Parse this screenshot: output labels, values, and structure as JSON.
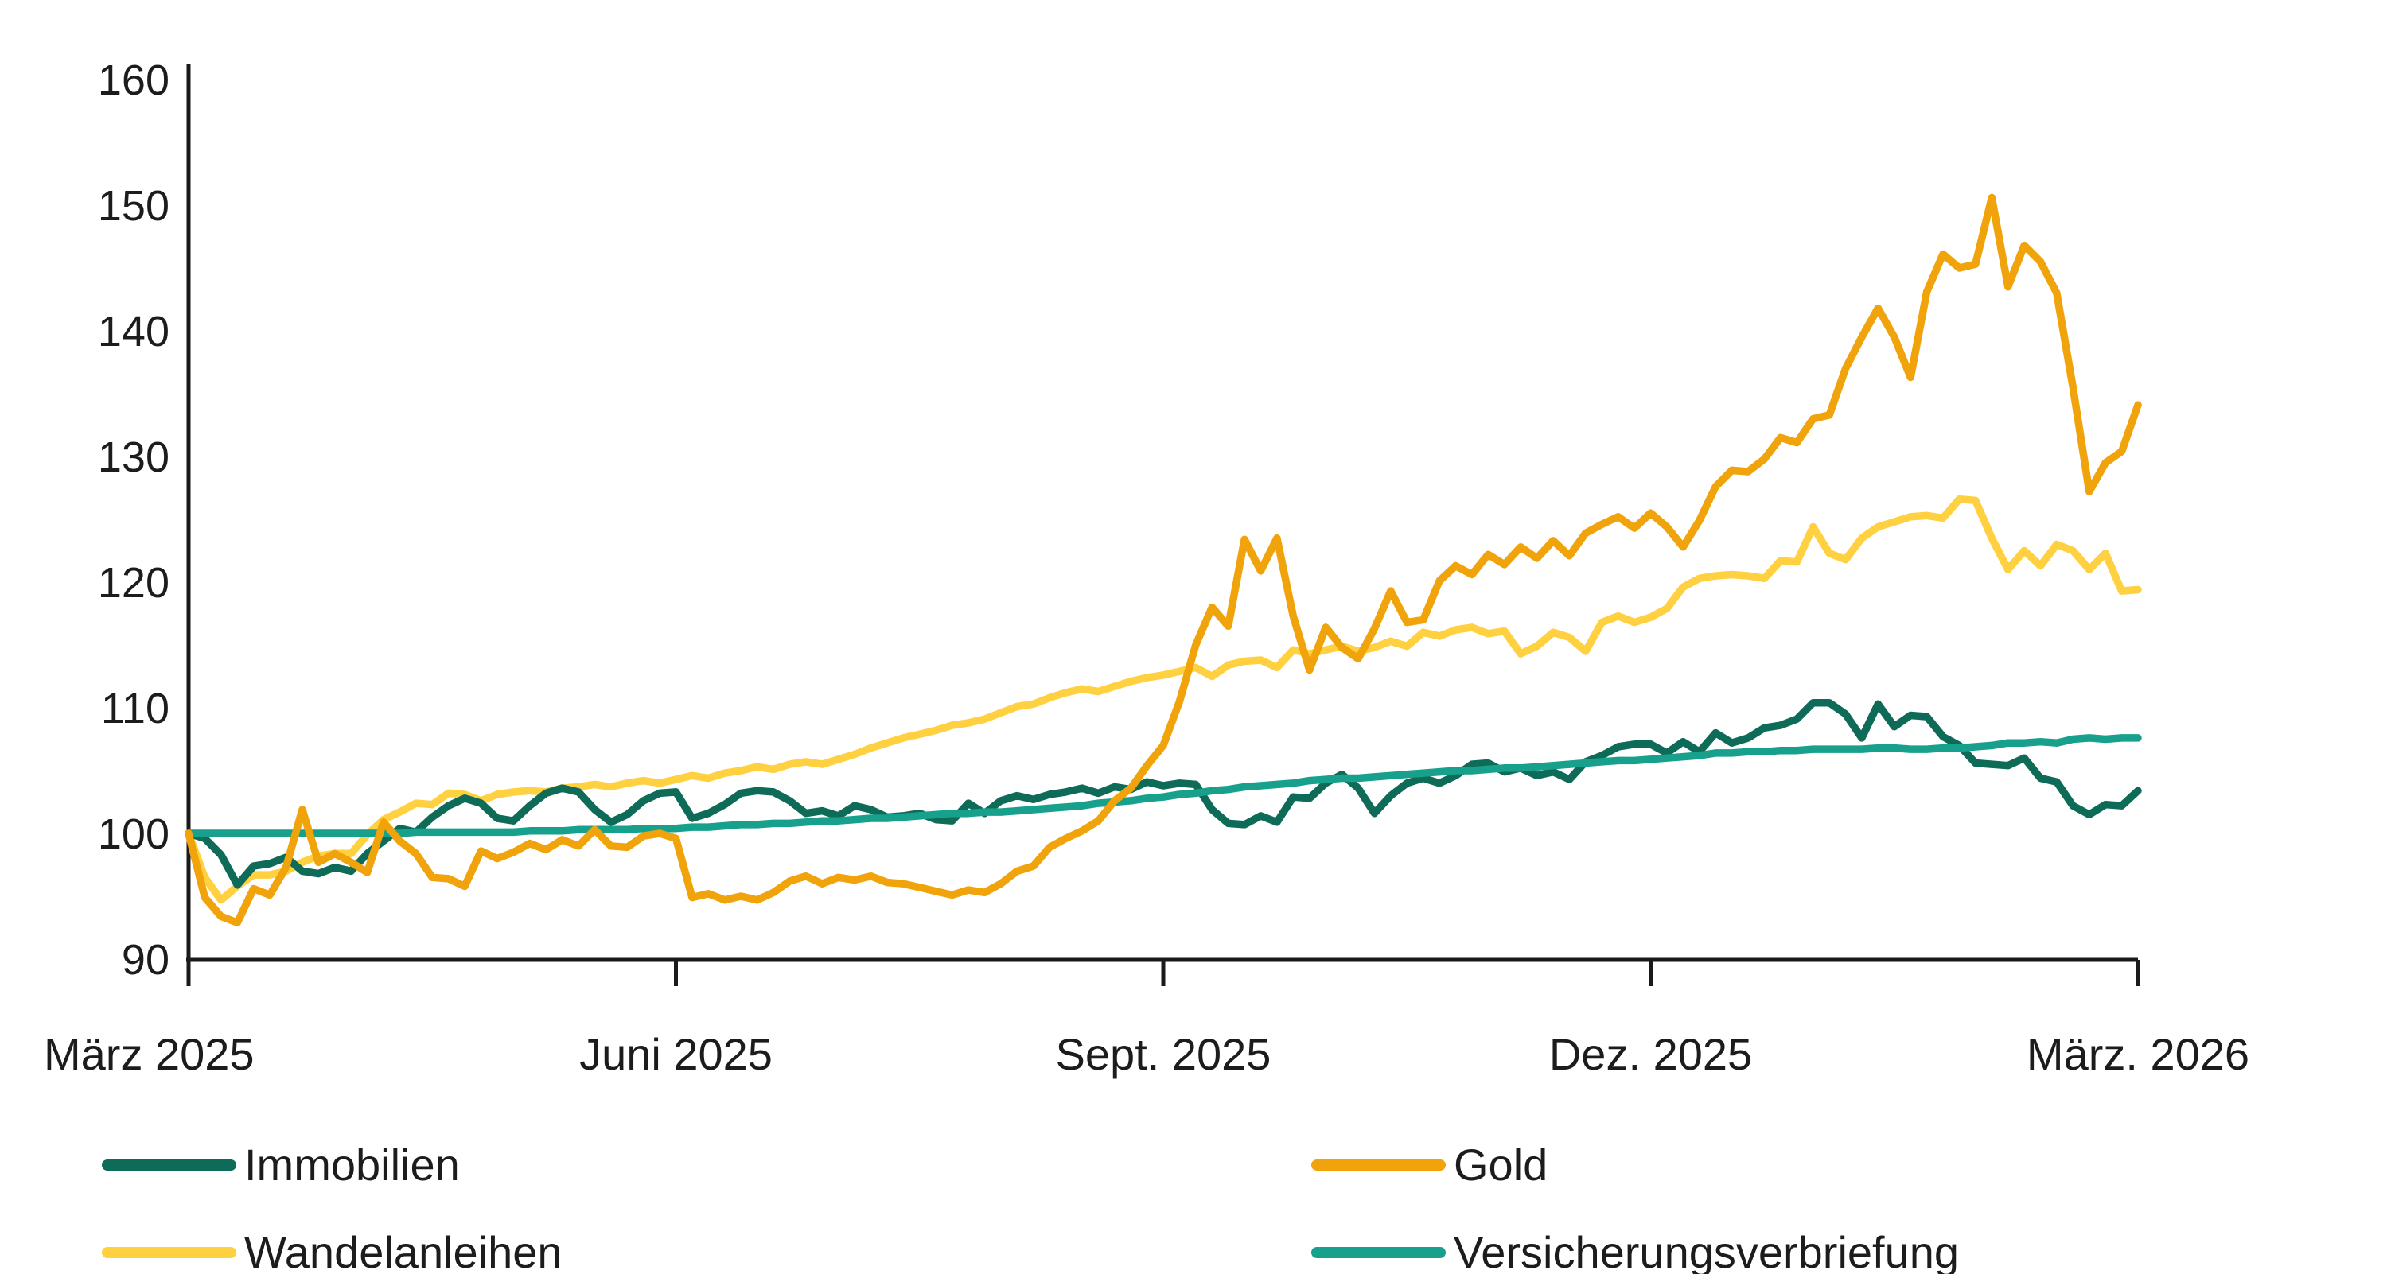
{
  "chart_data": {
    "type": "line",
    "title": "",
    "xlabel": "",
    "ylabel": "",
    "ylim": [
      90,
      160
    ],
    "grid": false,
    "legend_position": "bottom-two-columns",
    "y_ticks": [
      160,
      150,
      140,
      130,
      120,
      110,
      100,
      90
    ],
    "x_tick_labels": [
      "März 2025",
      "Juni 2025",
      "Sept. 2025",
      "Dez. 2025",
      "März. 2026"
    ],
    "x_tick_index": [
      0,
      30,
      60,
      90,
      120
    ],
    "x_points_per_month": 10,
    "axis_color": "#1a1a1a",
    "series": [
      {
        "id": "wandelanleihen",
        "name": "Wandelanleihen",
        "color": "#FFD03F",
        "legend_column": 1,
        "legend_row": 2,
        "values": [
          100,
          96.5,
          94.7,
          95.8,
          96.7,
          96.7,
          97.0,
          97.7,
          98.2,
          98.4,
          98.4,
          99.9,
          101.1,
          101.7,
          102.4,
          102.3,
          103.2,
          103.1,
          102.6,
          103.1,
          103.3,
          103.4,
          103.3,
          103.6,
          103.7,
          103.9,
          103.7,
          104.0,
          104.2,
          104.0,
          104.3,
          104.6,
          104.4,
          104.8,
          105.0,
          105.3,
          105.1,
          105.5,
          105.7,
          105.5,
          105.9,
          106.3,
          106.8,
          107.2,
          107.6,
          107.9,
          108.2,
          108.6,
          108.8,
          109.1,
          109.6,
          110.1,
          110.3,
          110.8,
          111.2,
          111.5,
          111.3,
          111.7,
          112.1,
          112.4,
          112.6,
          112.9,
          113.2,
          112.5,
          113.4,
          113.7,
          113.8,
          113.2,
          114.6,
          114.3,
          114.6,
          114.9,
          114.5,
          114.8,
          115.3,
          114.9,
          116.0,
          115.7,
          116.2,
          116.4,
          115.9,
          116.1,
          114.3,
          114.9,
          116.0,
          115.6,
          114.5,
          116.8,
          117.3,
          116.8,
          117.2,
          117.9,
          119.6,
          120.3,
          120.5,
          120.6,
          120.5,
          120.3,
          121.7,
          121.6,
          124.4,
          122.3,
          121.8,
          123.5,
          124.4,
          124.8,
          125.2,
          125.3,
          125.1,
          126.6,
          126.5,
          123.5,
          121.0,
          122.5,
          121.3,
          123.0,
          122.5,
          121.0,
          122.3,
          119.3,
          119.4
        ]
      },
      {
        "id": "immobilien",
        "name": "Immobilien",
        "color": "#0E6B58",
        "legend_column": 1,
        "legend_row": 1,
        "values": [
          100,
          99.6,
          98.3,
          95.9,
          97.4,
          97.6,
          98.1,
          97.0,
          96.8,
          97.3,
          97.0,
          98.4,
          99.4,
          100.4,
          100.1,
          101.3,
          102.2,
          102.8,
          102.4,
          101.2,
          101.0,
          102.2,
          103.2,
          103.6,
          103.3,
          101.9,
          100.9,
          101.5,
          102.6,
          103.2,
          103.3,
          101.2,
          101.6,
          102.3,
          103.2,
          103.4,
          103.3,
          102.6,
          101.6,
          101.8,
          101.4,
          102.2,
          101.9,
          101.3,
          101.4,
          101.6,
          101.1,
          101.0,
          102.4,
          101.6,
          102.6,
          103.0,
          102.7,
          103.1,
          103.3,
          103.6,
          103.2,
          103.7,
          103.5,
          104.1,
          103.8,
          104.0,
          103.9,
          101.9,
          100.8,
          100.7,
          101.4,
          100.9,
          102.9,
          102.8,
          104.0,
          104.7,
          103.6,
          101.6,
          103.0,
          104.0,
          104.4,
          104.0,
          104.6,
          105.5,
          105.6,
          104.9,
          105.2,
          104.6,
          104.9,
          104.3,
          105.7,
          106.2,
          106.9,
          107.1,
          107.1,
          106.4,
          107.3,
          106.5,
          108.0,
          107.2,
          107.6,
          108.4,
          108.6,
          109.1,
          110.4,
          110.4,
          109.5,
          107.6,
          110.3,
          108.5,
          109.4,
          109.3,
          107.7,
          107.0,
          105.6,
          105.5,
          105.4,
          106.0,
          104.4,
          104.1,
          102.2,
          101.5,
          102.3,
          102.2,
          103.4
        ]
      },
      {
        "id": "versicherungsverbriefung",
        "name": "Versicherungsverbriefung",
        "color": "#17A08C",
        "legend_column": 2,
        "legend_row": 2,
        "values": [
          100,
          100,
          100,
          100,
          100,
          100,
          100,
          100,
          100,
          100,
          100,
          100,
          100,
          100,
          100.1,
          100.1,
          100.1,
          100.1,
          100.1,
          100.1,
          100.1,
          100.2,
          100.2,
          100.2,
          100.3,
          100.3,
          100.3,
          100.3,
          100.4,
          100.4,
          100.4,
          100.5,
          100.5,
          100.6,
          100.7,
          100.7,
          100.8,
          100.8,
          100.9,
          101.0,
          101.0,
          101.1,
          101.2,
          101.2,
          101.3,
          101.4,
          101.5,
          101.6,
          101.6,
          101.7,
          101.7,
          101.8,
          101.9,
          102.0,
          102.1,
          102.2,
          102.4,
          102.5,
          102.6,
          102.8,
          102.9,
          103.1,
          103.2,
          103.4,
          103.5,
          103.7,
          103.8,
          103.9,
          104.0,
          104.2,
          104.3,
          104.4,
          104.4,
          104.5,
          104.6,
          104.7,
          104.8,
          104.9,
          105.0,
          105.0,
          105.1,
          105.2,
          105.2,
          105.3,
          105.4,
          105.5,
          105.6,
          105.7,
          105.8,
          105.8,
          105.9,
          106.0,
          106.1,
          106.2,
          106.4,
          106.4,
          106.5,
          106.5,
          106.6,
          106.6,
          106.7,
          106.7,
          106.7,
          106.7,
          106.8,
          106.8,
          106.7,
          106.7,
          106.8,
          106.8,
          106.9,
          107.0,
          107.2,
          107.2,
          107.3,
          107.2,
          107.5,
          107.6,
          107.5,
          107.6,
          107.6
        ]
      },
      {
        "id": "gold",
        "name": "Gold",
        "color": "#F0A30A",
        "legend_column": 2,
        "legend_row": 1,
        "values": [
          100,
          94.9,
          93.4,
          92.9,
          95.6,
          95.1,
          97.3,
          101.9,
          97.7,
          98.4,
          97.7,
          96.9,
          100.9,
          99.4,
          98.4,
          96.5,
          96.4,
          95.8,
          98.6,
          98.0,
          98.5,
          99.2,
          98.7,
          99.5,
          99.0,
          100.3,
          99.0,
          98.9,
          99.8,
          100.0,
          99.6,
          94.9,
          95.2,
          94.7,
          95.0,
          94.7,
          95.3,
          96.2,
          96.6,
          96.0,
          96.5,
          96.3,
          96.6,
          96.1,
          96.0,
          95.7,
          95.4,
          95.1,
          95.5,
          95.3,
          96.0,
          97.0,
          97.4,
          98.9,
          99.6,
          100.2,
          101.0,
          102.6,
          103.6,
          105.4,
          107.0,
          110.5,
          115.0,
          118.0,
          116.5,
          123.4,
          120.9,
          123.5,
          117.3,
          113.0,
          116.4,
          114.8,
          113.9,
          116.3,
          119.3,
          116.8,
          117.0,
          120.1,
          121.3,
          120.6,
          122.2,
          121.4,
          122.8,
          121.9,
          123.3,
          122.1,
          123.9,
          124.6,
          125.2,
          124.3,
          125.5,
          124.4,
          122.8,
          124.9,
          127.6,
          128.9,
          128.8,
          129.8,
          131.5,
          131.1,
          133.0,
          133.3,
          137.0,
          139.5,
          141.8,
          139.5,
          136.3,
          143.1,
          146.1,
          145.0,
          145.3,
          150.6,
          143.5,
          146.8,
          145.5,
          143.0,
          135.5,
          127.2,
          129.5,
          130.4,
          134.1
        ]
      }
    ]
  },
  "legend": {
    "items": [
      {
        "label": "Immobilien",
        "series_id": "immobilien"
      },
      {
        "label": "Gold",
        "series_id": "gold"
      },
      {
        "label": "Wandelanleihen",
        "series_id": "wandelanleihen"
      },
      {
        "label": "Versicherungsverbriefung",
        "series_id": "versicherungsverbriefung"
      }
    ]
  }
}
